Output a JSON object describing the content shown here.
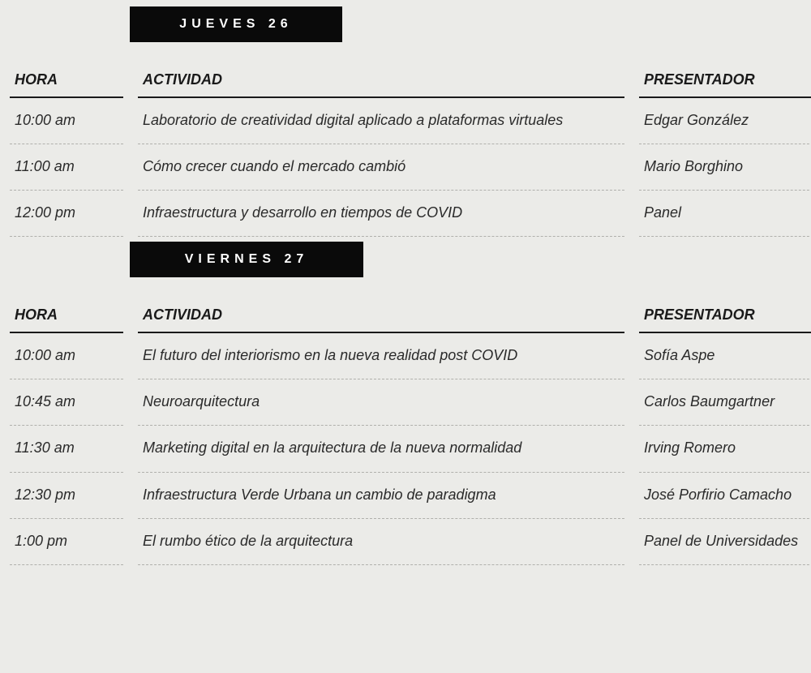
{
  "background_color": "#ebebe8",
  "text_color": "#1a1a1a",
  "header_bg": "#0a0a0a",
  "header_fg": "#ffffff",
  "font_style": "italic",
  "days": [
    {
      "label": "JUEVES 26",
      "header_class": "d1",
      "columns": {
        "hora": "HORA",
        "actividad": "ACTIVIDAD",
        "presentador": "PRESENTADOR"
      },
      "rows": [
        {
          "hora": "10:00 am",
          "actividad": "Laboratorio de creatividad digital aplicado a plataformas virtuales",
          "presentador": "Edgar González"
        },
        {
          "hora": "11:00 am",
          "actividad": "Cómo crecer cuando el mercado cambió",
          "presentador": "Mario Borghino"
        },
        {
          "hora": "12:00 pm",
          "actividad": "Infraestructura y desarrollo en tiempos de COVID",
          "presentador": "Panel"
        }
      ]
    },
    {
      "label": "VIERNES 27",
      "header_class": "d2",
      "columns": {
        "hora": "HORA",
        "actividad": "ACTIVIDAD",
        "presentador": "PRESENTADOR"
      },
      "rows": [
        {
          "hora": "10:00 am",
          "actividad": "El futuro del interiorismo en la nueva realidad post COVID",
          "presentador": "Sofía Aspe"
        },
        {
          "hora": "10:45 am",
          "actividad": "Neuroarquitectura",
          "presentador": "Carlos Baumgartner"
        },
        {
          "hora": "11:30 am",
          "actividad": "Marketing digital en la arquitectura de la nueva normalidad",
          "presentador": "Irving Romero"
        },
        {
          "hora": "12:30 pm",
          "actividad": "Infraestructura Verde Urbana un cambio de paradigma",
          "presentador": "José Porfirio Camacho"
        },
        {
          "hora": "1:00 pm",
          "actividad": "El rumbo ético de la arquitectura",
          "presentador": "Panel de Universidades"
        }
      ]
    }
  ]
}
